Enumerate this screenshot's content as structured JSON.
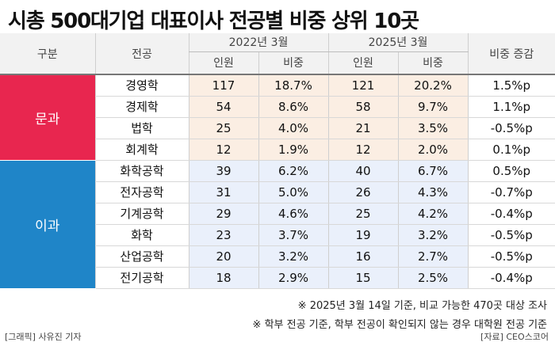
{
  "title": "시총 500대기업 대표이사 전공별 비중 상위 10곳",
  "header": {
    "category": "구분",
    "major": "전공",
    "period1": "2022년 3월",
    "period2": "2025년 3월",
    "count": "인원",
    "share": "비중",
    "change": "비중 증감"
  },
  "groups": [
    {
      "label": "문과",
      "color": "#e8264f"
    },
    {
      "label": "이과",
      "color": "#1f85c8"
    }
  ],
  "colors": {
    "humanities_cell": "#fbeee3",
    "science_cell": "#eaf0fb",
    "header_bg": "#f2f2f2"
  },
  "rows": [
    {
      "major": "경영학",
      "c2022": "117",
      "s2022": "18.7%",
      "c2025": "121",
      "s2025": "20.2%",
      "change": "1.5%p"
    },
    {
      "major": "경제학",
      "c2022": "54",
      "s2022": "8.6%",
      "c2025": "58",
      "s2025": "9.7%",
      "change": "1.1%p"
    },
    {
      "major": "법학",
      "c2022": "25",
      "s2022": "4.0%",
      "c2025": "21",
      "s2025": "3.5%",
      "change": "-0.5%p"
    },
    {
      "major": "회계학",
      "c2022": "12",
      "s2022": "1.9%",
      "c2025": "12",
      "s2025": "2.0%",
      "change": "0.1%p"
    },
    {
      "major": "화학공학",
      "c2022": "39",
      "s2022": "6.2%",
      "c2025": "40",
      "s2025": "6.7%",
      "change": "0.5%p"
    },
    {
      "major": "전자공학",
      "c2022": "31",
      "s2022": "5.0%",
      "c2025": "26",
      "s2025": "4.3%",
      "change": "-0.7%p"
    },
    {
      "major": "기계공학",
      "c2022": "29",
      "s2022": "4.6%",
      "c2025": "25",
      "s2025": "4.2%",
      "change": "-0.4%p"
    },
    {
      "major": "화학",
      "c2022": "23",
      "s2022": "3.7%",
      "c2025": "19",
      "s2025": "3.2%",
      "change": "-0.5%p"
    },
    {
      "major": "산업공학",
      "c2022": "20",
      "s2022": "3.2%",
      "c2025": "16",
      "s2025": "2.7%",
      "change": "-0.5%p"
    },
    {
      "major": "전기공학",
      "c2022": "18",
      "s2022": "2.9%",
      "c2025": "15",
      "s2025": "2.5%",
      "change": "-0.4%p"
    }
  ],
  "notes": [
    "※ 2025년 3월 14일 기준, 비교 가능한 470곳 대상 조사",
    "※ 학부 전공 기준, 학부 전공이 확인되지 않는 경우 대학원 전공 기준"
  ],
  "credit_left": "[그래픽] 사유진 기자",
  "credit_right": "[자료] CEO스코어"
}
